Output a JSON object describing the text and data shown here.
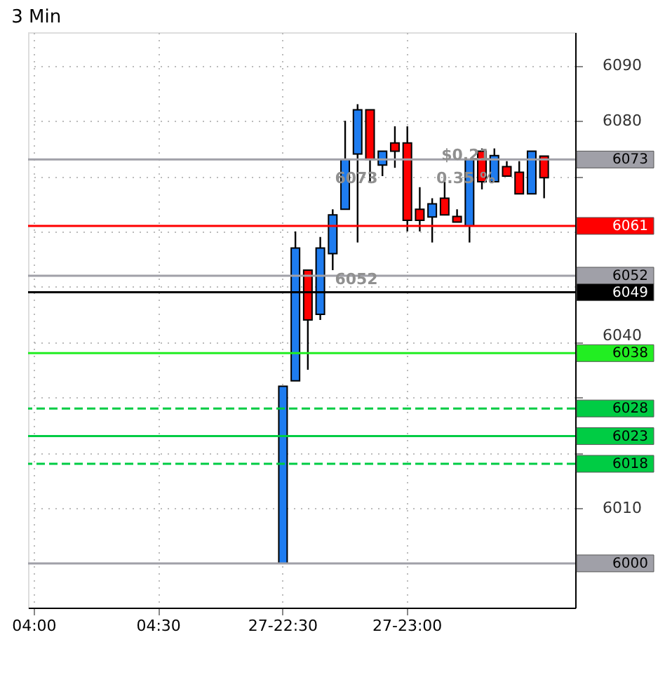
{
  "chart_data": {
    "type": "candlestick",
    "title": "3 Min",
    "categories": [
      "04:00",
      null,
      null,
      null,
      null,
      null,
      null,
      null,
      null,
      null,
      "04:30",
      null,
      null,
      null,
      null,
      null,
      null,
      null,
      null,
      null,
      "27-22:30",
      null,
      null,
      null,
      null,
      null,
      null,
      null,
      null,
      null,
      "27-23:00",
      null,
      null,
      null,
      null,
      null,
      null,
      null,
      null,
      null,
      null,
      null,
      null,
      null
    ],
    "ohlc": [
      null,
      null,
      null,
      null,
      null,
      null,
      null,
      null,
      null,
      null,
      null,
      null,
      null,
      null,
      null,
      null,
      null,
      null,
      null,
      null,
      [
        6000,
        6032,
        6000,
        6032
      ],
      [
        6033,
        6060,
        6033,
        6057
      ],
      [
        6053,
        6053,
        6035,
        6044
      ],
      [
        6045,
        6059,
        6044,
        6057
      ],
      [
        6056,
        6064,
        6053,
        6063
      ],
      [
        6064,
        6080,
        6064,
        6073
      ],
      [
        6074,
        6083,
        6058,
        6082
      ],
      [
        6082,
        6082,
        6069,
        6073
      ],
      [
        6072,
        6074.5,
        6070,
        6074.5
      ],
      [
        6076,
        6079,
        6071.5,
        6074.5
      ],
      [
        6076,
        6079,
        6060,
        6062
      ],
      [
        6064,
        6068,
        6060,
        6062
      ],
      [
        6062.6,
        6066,
        6058,
        6065
      ],
      [
        6066,
        6069,
        6063,
        6063
      ],
      [
        6062.7,
        6064,
        6061.7,
        6061.7
      ],
      [
        6061,
        6073,
        6058,
        6073
      ],
      [
        6074.5,
        6075,
        6067.6,
        6069
      ],
      [
        6069,
        6075,
        6069,
        6073.7
      ],
      [
        6071.7,
        6072.7,
        6070,
        6070
      ],
      [
        6070.7,
        6072.7,
        6066.8,
        6066.8
      ],
      [
        6066.8,
        6074.5,
        6066.8,
        6074.5
      ],
      [
        6073.6,
        6073.6,
        6066,
        6069.7
      ],
      null,
      null
    ],
    "colors": [
      null,
      null,
      null,
      null,
      null,
      null,
      null,
      null,
      null,
      null,
      null,
      null,
      null,
      null,
      null,
      null,
      null,
      null,
      null,
      null,
      "#1e7cf0",
      "#1e7cf0",
      "#ff0000",
      "#1e7cf0",
      "#1e7cf0",
      "#1e7cf0",
      "#1e7cf0",
      "#ff0000",
      "#1e7cf0",
      "#ff0000",
      "#ff0000",
      "#ff0000",
      "#1e7cf0",
      "#ff0000",
      "#ff0000",
      "#1e7cf0",
      "#ff0000",
      "#1e7cf0",
      "#ff0000",
      "#ff0000",
      "#1e7cf0",
      "#ff0000",
      null,
      null
    ],
    "ylim": [
      5992,
      6096
    ],
    "yticks": [
      {
        "value": 6000,
        "label": null
      },
      6010,
      {
        "value": 6020,
        "label": null
      },
      {
        "value": 6030,
        "label": null
      },
      6040,
      {
        "value": 6050,
        "label": null
      },
      {
        "value": 6060,
        "label": null
      },
      {
        "value": 6070,
        "label": null
      },
      6080,
      6090
    ],
    "grid": true,
    "ref_lines": [
      {
        "axis": "y",
        "value": 6073,
        "label": "6073",
        "color": "#a0a0a8"
      },
      {
        "axis": "y",
        "value": 6061,
        "label": "6061",
        "color": "#ff0000"
      },
      {
        "axis": "y",
        "value": 6052,
        "label": "6052",
        "color": "#a0a0a8"
      },
      {
        "axis": "y",
        "value": 6049,
        "label": "6049",
        "color": "#000000"
      },
      {
        "axis": "y",
        "value": 6038,
        "label": "6038",
        "color": "#22ee22"
      },
      {
        "axis": "y",
        "value": 6028,
        "label": "6028",
        "color": "#00cc44",
        "line_style": "dashed"
      },
      {
        "axis": "y",
        "value": 6023,
        "label": "6023",
        "color": "#00cc44"
      },
      {
        "axis": "y",
        "value": 6018,
        "label": "6018",
        "color": "#00cc44",
        "line_style": "dashed"
      },
      {
        "axis": "y",
        "value": 6000,
        "label": "6000",
        "color": "#a0a0a8"
      }
    ],
    "annotations": [
      "$0.21",
      "0.35 %",
      "6073",
      "6052"
    ]
  }
}
